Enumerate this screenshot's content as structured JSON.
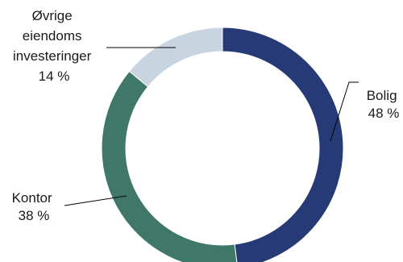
{
  "chart_data": {
    "type": "pie",
    "donut": true,
    "title": "",
    "slices": [
      {
        "label": "Bolig",
        "value": 48,
        "value_text": "48 %",
        "color": "#263a75"
      },
      {
        "label": "Kontor",
        "value": 38,
        "value_text": "38 %",
        "color": "#3f7868"
      },
      {
        "label": "Øvrige eiendoms investeringer",
        "label_lines": [
          "Øvrige",
          "eiendoms",
          "investeringer"
        ],
        "value": 14,
        "value_text": "14 %",
        "color": "#c8d4e0"
      }
    ],
    "legend": "none"
  }
}
